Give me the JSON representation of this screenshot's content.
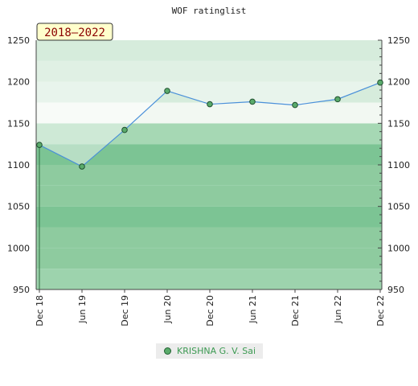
{
  "chart_data": {
    "type": "area",
    "title": "WOF ratinglist",
    "period_badge": "2018–2022",
    "x": [
      "Dec 18",
      "Jun 19",
      "Dec 19",
      "Jun 20",
      "Dec 20",
      "Jun 21",
      "Dec 21",
      "Jun 22",
      "Dec 22"
    ],
    "series": [
      {
        "name": "KRISHNA G. V. Sai",
        "values": [
          1124,
          1098,
          1142,
          1189,
          1173,
          1176,
          1172,
          1179,
          1199
        ]
      }
    ],
    "ylim": [
      950,
      1250
    ],
    "yticks": [
      950,
      1000,
      1050,
      1100,
      1150,
      1200,
      1250
    ],
    "band_colors": [
      "#9dd3ad",
      "#8ecb9f",
      "#8ecb9f",
      "#7cc494",
      "#8ecb9f",
      "#8ecb9f",
      "#7cc494",
      "#a6d8b4",
      "#f2f8f2",
      "#d6ecdc",
      "#c6e4ce",
      "#b4dcbf"
    ],
    "colors": {
      "line": "#4a90d9",
      "marker": "#5aab6b",
      "marker_edge": "#1f4f2f",
      "badge_bg": "#ffffcc"
    },
    "legend_position": "bottom-center"
  }
}
